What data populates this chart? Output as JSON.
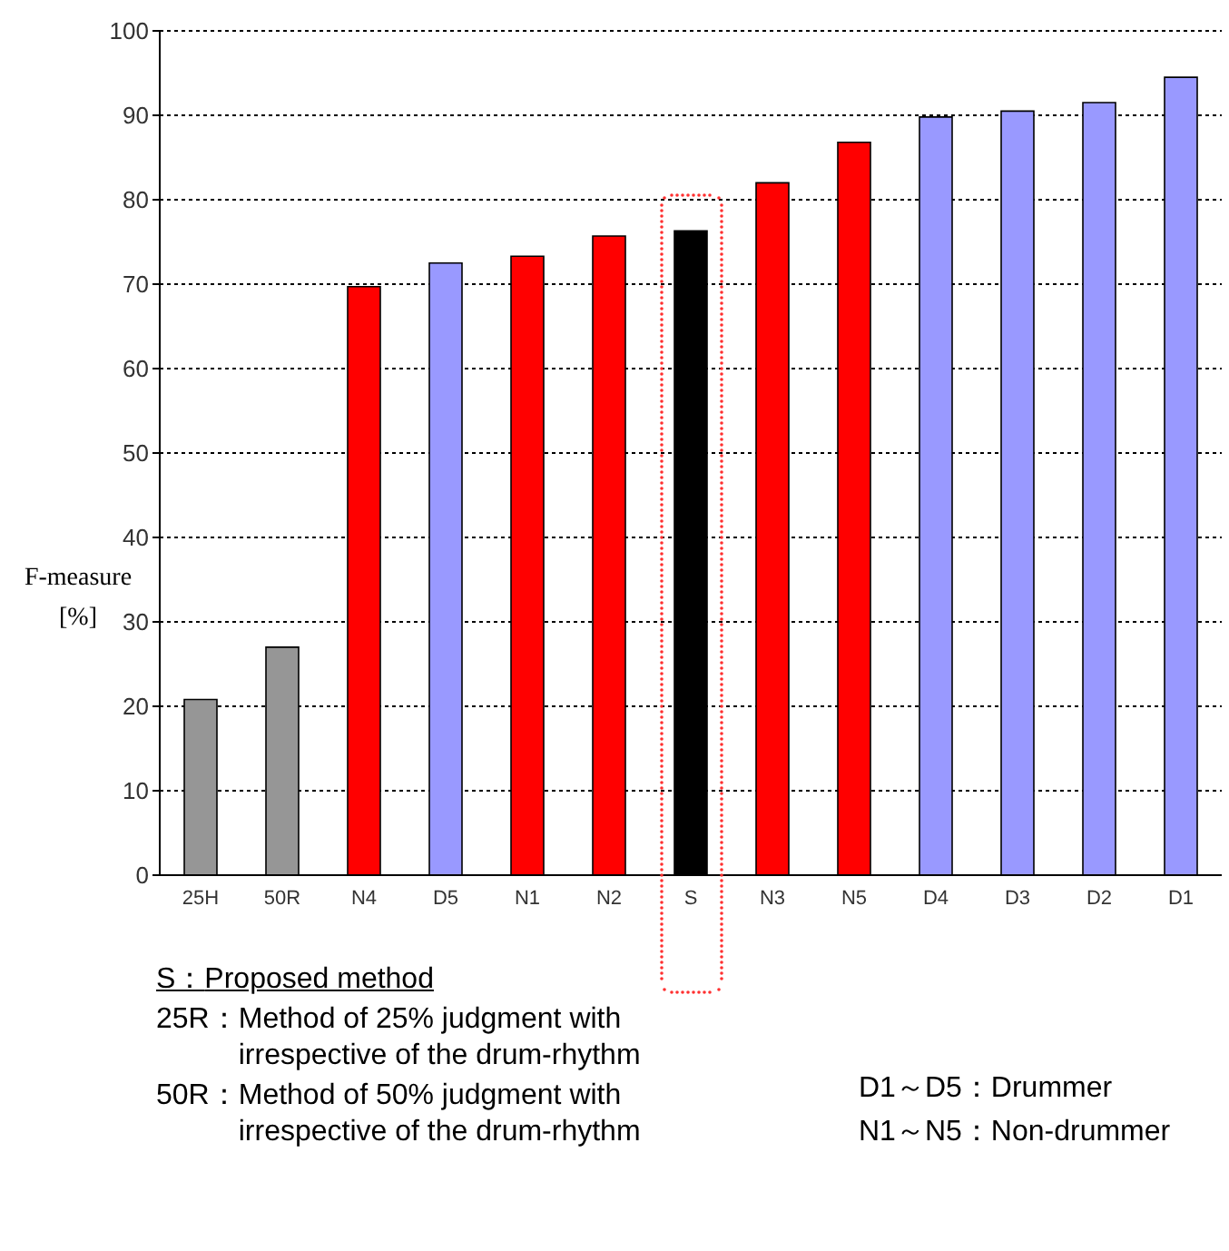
{
  "chart_data": {
    "type": "bar",
    "ylabel": "F-measure [%]",
    "categories": [
      "25H",
      "50R",
      "N4",
      "D5",
      "N1",
      "N2",
      "S",
      "N3",
      "N5",
      "D4",
      "D3",
      "D2",
      "D1"
    ],
    "values": [
      20.8,
      27,
      69.7,
      72.5,
      73.3,
      75.7,
      76.3,
      82,
      86.8,
      89.8,
      90.5,
      91.5,
      94.5
    ],
    "colors": [
      "#969696",
      "#969696",
      "#ff0000",
      "#9999ff",
      "#ff0000",
      "#ff0000",
      "#000000",
      "#ff0000",
      "#ff0000",
      "#9999ff",
      "#9999ff",
      "#9999ff",
      "#9999ff"
    ],
    "ylim": [
      0,
      100
    ],
    "yticks": [
      0,
      10,
      20,
      30,
      40,
      50,
      60,
      70,
      80,
      90,
      100
    ],
    "grid": "y",
    "annotations": [
      "S：Proposed method",
      "25R：Method of 25% judgment with irrespective of the drum-rhythm",
      "50R：Method of 50% judgment with irrespective of the drum-rhythm",
      "D1～D5：Drummer",
      "N1～N5：Non-drummer"
    ]
  }
}
